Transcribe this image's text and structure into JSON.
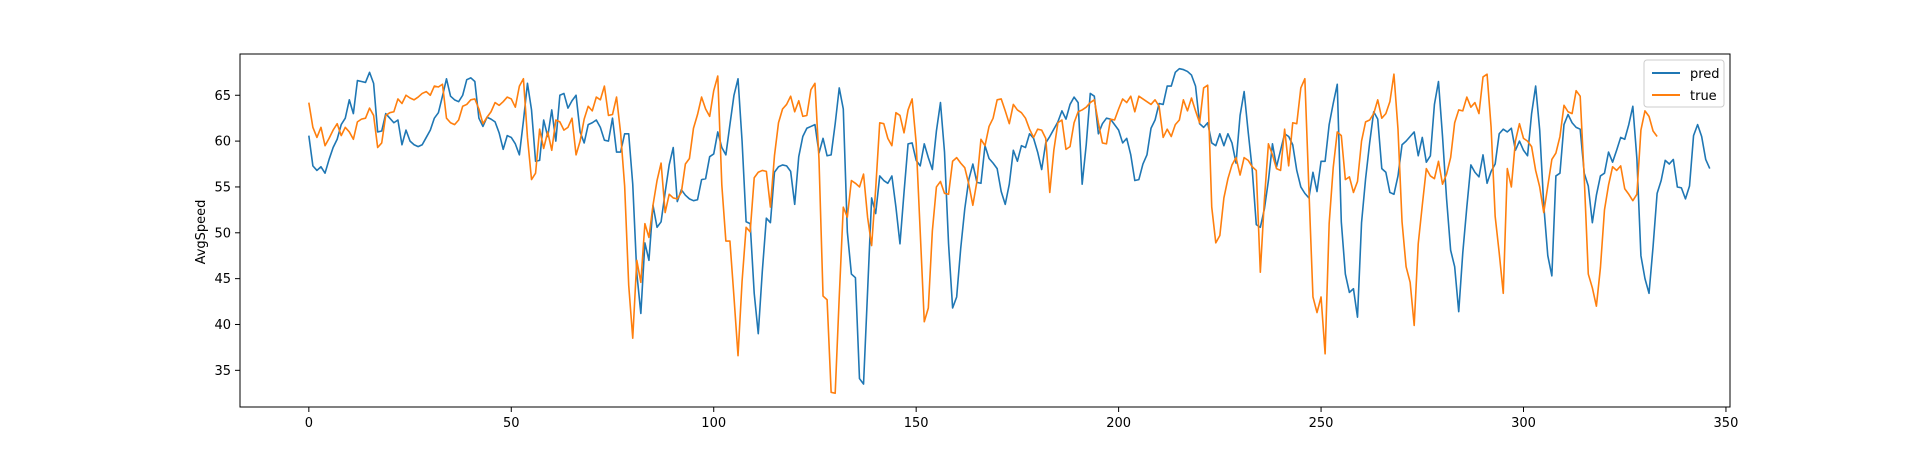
{
  "chart_data": {
    "type": "line",
    "title": "",
    "xlabel": "",
    "ylabel": "AvgSpeed",
    "xlim": [
      -17,
      351
    ],
    "ylim": [
      31,
      69.5
    ],
    "xticks": [
      0,
      50,
      100,
      150,
      200,
      250,
      300,
      350
    ],
    "yticks": [
      35,
      40,
      45,
      50,
      55,
      60,
      65
    ],
    "grid": false,
    "legend_position": "top-right",
    "colors": {
      "pred": "#1f77b4",
      "true": "#ff7f0e"
    },
    "series": [
      {
        "name": "pred",
        "values": [
          60.6,
          57.3,
          56.8,
          57.2,
          56.5,
          58.0,
          59.3,
          60.2,
          61.8,
          62.5,
          64.5,
          63.0,
          66.6,
          66.5,
          66.4,
          67.5,
          66.3,
          61.0,
          61.1,
          63.0,
          62.5,
          62.0,
          62.3,
          59.6,
          61.2,
          60.0,
          59.6,
          59.4,
          59.6,
          60.4,
          61.2,
          62.5,
          63.1,
          64.9,
          66.8,
          64.9,
          64.5,
          64.3,
          65.0,
          66.7,
          66.9,
          66.5,
          62.5,
          61.6,
          62.6,
          62.4,
          62.1,
          60.9,
          59.1,
          60.6,
          60.4,
          59.7,
          58.5,
          62.2,
          66.3,
          63.4,
          57.8,
          57.9,
          62.3,
          60.5,
          63.4,
          60.0,
          65.0,
          65.2,
          63.6,
          64.4,
          65.0,
          61.0,
          59.8,
          61.8,
          62.0,
          62.3,
          61.5,
          60.1,
          60.0,
          62.5,
          58.8,
          58.8,
          60.8,
          60.8,
          55.3,
          45.6,
          41.2,
          48.9,
          47.0,
          53.0,
          50.6,
          51.2,
          54.4,
          57.4,
          59.3,
          53.4,
          54.7,
          54.1,
          53.7,
          53.5,
          53.6,
          55.8,
          55.9,
          58.3,
          58.6,
          61.0,
          59.3,
          58.5,
          61.8,
          65.0,
          66.8,
          60.0,
          51.2,
          51.0,
          43.4,
          39.0,
          45.8,
          51.6,
          51.1,
          56.6,
          57.2,
          57.4,
          57.3,
          56.7,
          53.1,
          58.3,
          60.5,
          61.4,
          61.6,
          61.8,
          58.7,
          60.3,
          58.4,
          58.5,
          61.9,
          65.8,
          63.5,
          50.1,
          45.5,
          45.1,
          34.1,
          33.5,
          43.6,
          53.8,
          52.1,
          56.2,
          55.7,
          55.4,
          56.2,
          52.8,
          48.8,
          54.4,
          59.7,
          59.8,
          57.9,
          57.3,
          59.7,
          58.2,
          56.9,
          61.1,
          64.2,
          58.8,
          48.8,
          41.8,
          43.0,
          48.3,
          52.6,
          55.8,
          57.5,
          55.5,
          55.4,
          59.5,
          58.1,
          57.6,
          57.0,
          54.5,
          53.1,
          55.3,
          59.0,
          57.8,
          59.5,
          59.3,
          60.8,
          60.3,
          58.8,
          56.9,
          59.8,
          60.5,
          61.3,
          62.1,
          63.3,
          62.4,
          64.0,
          64.8,
          64.2,
          55.3,
          59.6,
          65.2,
          64.9,
          60.8,
          61.9,
          62.5,
          62.4,
          61.8,
          61.2,
          59.8,
          60.3,
          58.5,
          55.7,
          55.8,
          57.5,
          58.5,
          61.4,
          62.3,
          64.1,
          64.0,
          66.0,
          66.0,
          67.5,
          67.9,
          67.8,
          67.6,
          67.2,
          66.0,
          61.9,
          61.5,
          62.0,
          59.8,
          59.5,
          60.8,
          59.5,
          60.8,
          59.8,
          57.6,
          62.8,
          65.4,
          61.0,
          56.9,
          50.9,
          50.6,
          52.6,
          55.7,
          59.7,
          57.2,
          59.0,
          60.8,
          60.5,
          59.6,
          56.8,
          55.0,
          54.3,
          53.8,
          56.6,
          54.5,
          57.8,
          57.8,
          61.8,
          64.1,
          66.2,
          51.2,
          45.5,
          43.5,
          43.9,
          40.8,
          51.1,
          55.9,
          59.8,
          63.2,
          62.4,
          57.0,
          56.6,
          54.4,
          54.2,
          56.2,
          59.6,
          60.0,
          60.5,
          61.0,
          58.4,
          60.4,
          57.7,
          58.4,
          64.0,
          66.5,
          60.5,
          53.7,
          48.1,
          46.3,
          41.4,
          47.8,
          52.8,
          57.4,
          56.6,
          56.1,
          58.5,
          55.4,
          56.7,
          57.5,
          60.8,
          61.3,
          61.0,
          61.4,
          59.0,
          60.0,
          59.0,
          58.4,
          63.0,
          66.0,
          61.2,
          53.0,
          47.5,
          45.3,
          56.2,
          56.5,
          61.8,
          62.9,
          62.0,
          61.5,
          61.3,
          56.5,
          55.1,
          51.1,
          54.1,
          56.2,
          56.5,
          58.8,
          57.7,
          59.0,
          60.4,
          60.2,
          61.8,
          63.8,
          58.1,
          47.5,
          45.0,
          43.4,
          48.5,
          54.3,
          55.7,
          57.9,
          57.5,
          58.0,
          55.0,
          54.9,
          53.7,
          55.1,
          60.6,
          61.8,
          60.5,
          58.0,
          57.0
        ]
      },
      {
        "name": "true",
        "values": [
          64.2,
          61.5,
          60.4,
          61.5,
          59.5,
          60.3,
          61.2,
          61.9,
          60.6,
          61.5,
          61.0,
          60.2,
          62.1,
          62.4,
          62.5,
          63.6,
          62.8,
          59.3,
          59.8,
          62.8,
          63.1,
          63.2,
          64.6,
          64.1,
          65.0,
          64.7,
          64.5,
          64.8,
          65.2,
          65.4,
          65.0,
          66.0,
          65.9,
          66.2,
          62.5,
          62.0,
          61.8,
          62.3,
          63.8,
          64.0,
          64.5,
          64.6,
          63.5,
          61.9,
          62.6,
          63.2,
          64.2,
          63.9,
          64.3,
          64.8,
          64.6,
          63.7,
          66.0,
          66.8,
          60.4,
          55.8,
          56.5,
          61.3,
          59.2,
          61.0,
          59.0,
          62.3,
          62.1,
          61.2,
          61.5,
          62.5,
          58.5,
          60.0,
          62.4,
          63.8,
          63.3,
          64.8,
          64.5,
          66.0,
          62.8,
          62.9,
          64.8,
          60.9,
          55.1,
          44.3,
          38.5,
          47.0,
          44.6,
          51.0,
          49.5,
          53.0,
          55.7,
          57.6,
          52.2,
          54.2,
          53.8,
          53.7,
          54.4,
          57.5,
          58.1,
          61.4,
          62.9,
          64.8,
          63.5,
          62.7,
          65.5,
          67.1,
          55.2,
          49.1,
          49.1,
          43.0,
          36.6,
          44.7,
          50.6,
          50.1,
          56.0,
          56.6,
          56.8,
          56.7,
          52.8,
          58.4,
          62.0,
          63.5,
          64.0,
          64.9,
          63.2,
          64.4,
          62.7,
          62.8,
          65.6,
          66.3,
          58.0,
          43.1,
          42.7,
          32.6,
          32.5,
          43.0,
          52.8,
          51.7,
          55.7,
          55.4,
          55.0,
          56.4,
          51.7,
          48.6,
          54.8,
          62.0,
          61.9,
          60.3,
          59.5,
          63.1,
          62.8,
          60.9,
          63.4,
          64.6,
          59.8,
          50.1,
          40.3,
          41.8,
          50.2,
          55.0,
          55.6,
          54.3,
          54.2,
          57.8,
          58.2,
          57.6,
          57.1,
          55.3,
          53.0,
          55.6,
          60.2,
          59.5,
          61.6,
          62.5,
          64.5,
          64.6,
          63.3,
          61.9,
          64.0,
          63.4,
          63.1,
          62.5,
          61.3,
          60.4,
          61.3,
          61.2,
          60.3,
          54.4,
          59.0,
          62.0,
          62.3,
          59.1,
          59.4,
          62.0,
          63.2,
          63.4,
          63.7,
          64.2,
          64.5,
          62.0,
          59.8,
          59.7,
          62.4,
          62.3,
          63.5,
          64.6,
          64.2,
          64.9,
          63.2,
          64.9,
          64.6,
          64.3,
          64.0,
          64.5,
          63.8,
          60.4,
          61.3,
          60.5,
          61.8,
          62.3,
          64.5,
          63.3,
          64.7,
          63.3,
          62.0,
          65.8,
          66.1,
          52.8,
          48.9,
          49.7,
          53.8,
          55.9,
          57.4,
          58.2,
          56.3,
          58.2,
          57.9,
          57.2,
          56.8,
          45.7,
          53.6,
          59.7,
          58.5,
          57.0,
          56.8,
          61.3,
          57.3,
          62.0,
          61.9,
          65.8,
          66.8,
          54.7,
          43.0,
          41.3,
          43.0,
          36.8,
          51.0,
          57.1,
          61.0,
          60.6,
          55.8,
          56.1,
          54.4,
          55.6,
          60.0,
          62.1,
          62.3,
          63.0,
          64.5,
          62.5,
          63.0,
          64.3,
          67.3,
          61.3,
          51.2,
          46.3,
          44.6,
          39.9,
          48.8,
          53.0,
          57.0,
          56.2,
          55.9,
          57.8,
          55.3,
          56.4,
          58.2,
          62.0,
          63.4,
          63.3,
          64.8,
          63.7,
          64.2,
          63.0,
          67.0,
          67.3,
          61.5,
          51.8,
          47.8,
          43.4,
          57.0,
          55.0,
          60.0,
          61.9,
          60.3,
          60.0,
          59.4,
          56.8,
          55.0,
          52.2,
          55.1,
          58.0,
          58.7,
          60.5,
          63.9,
          63.2,
          63.0,
          65.5,
          64.9,
          56.0,
          45.5,
          44.0,
          42.0,
          46.2,
          52.5,
          55.2,
          57.2,
          56.8,
          57.3,
          54.8,
          54.2,
          53.5,
          54.2,
          61.2,
          63.3,
          62.7,
          61.1,
          60.5
        ]
      }
    ]
  }
}
